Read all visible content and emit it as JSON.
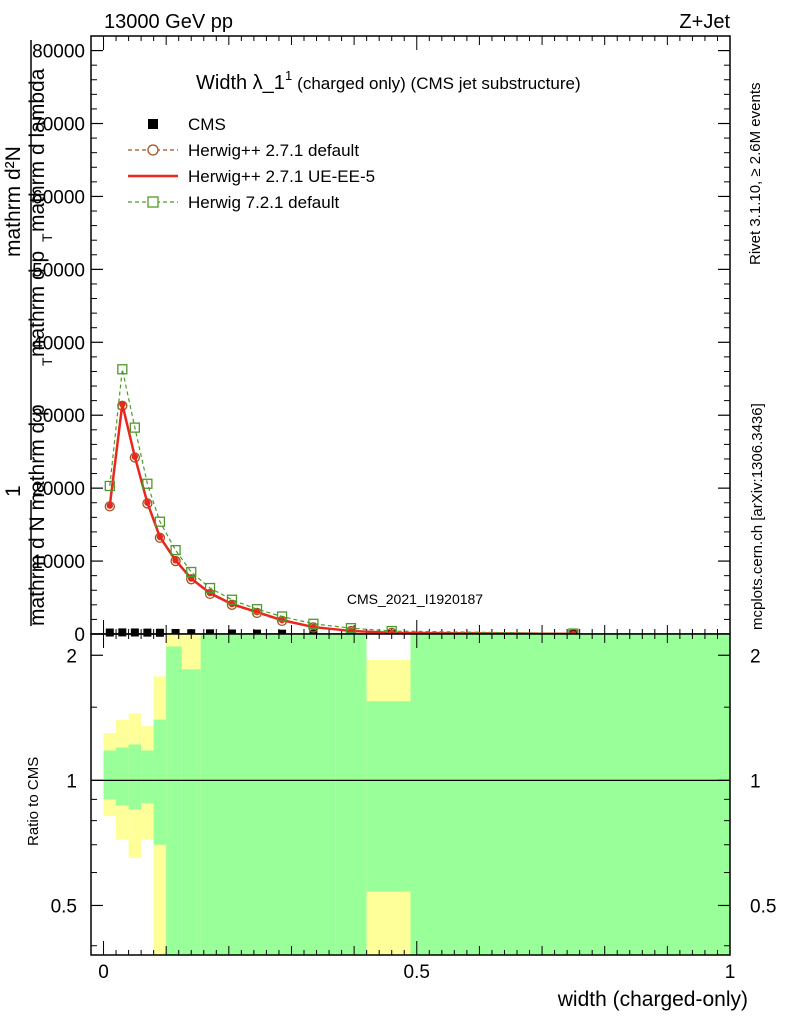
{
  "header": {
    "left": "13000 GeV pp",
    "right": "Z+Jet"
  },
  "side_labels": {
    "rivet": "Rivet 3.1.10, ≥ 2.6M events",
    "mcplots": "mcplots.cern.ch [arXiv:1306.3436]"
  },
  "watermark": "CMS_2021_I1920187",
  "chart_data": [
    {
      "type": "line",
      "title_main": "Width λ_1",
      "title_sup": "1",
      "title_sub": "(charged only) (CMS jet substructure)",
      "ylabel_lines": [
        "1",
        "mathrm d N mathrm d p",
        "mathrm d N",
        "mathrm d p",
        "mathrm d lambda"
      ],
      "ylabel_display": [
        "1",
        "mathrm d N mathrm d p",
        "mathrm d²N",
        "mathrm d p",
        "mathrm d lambda"
      ],
      "ylabel_T": "T",
      "ylim": [
        0,
        82000
      ],
      "yticks": [
        0,
        10000,
        20000,
        30000,
        40000,
        50000,
        60000,
        70000,
        80000
      ],
      "ytick_labels": [
        "0",
        "10000",
        "20000",
        "30000",
        "40000",
        "50000",
        "60000",
        "70000",
        "80000"
      ],
      "xlim": [
        -0.02,
        1.0
      ],
      "legend_position": "top-left",
      "series": [
        {
          "name": "CMS",
          "color": "#000000",
          "style": "markers",
          "x": [
            0.01,
            0.03,
            0.05,
            0.07,
            0.09,
            0.115,
            0.14,
            0.17,
            0.205,
            0.245,
            0.285,
            0.335,
            0.395,
            0.46,
            0.75
          ],
          "y": [
            200,
            220,
            210,
            190,
            170,
            140,
            110,
            90,
            70,
            50,
            40,
            30,
            20,
            10,
            2
          ]
        },
        {
          "name": "Herwig++ 2.7.1 default",
          "color": "#a0521d",
          "style": "dashed-circle",
          "x": [
            0.01,
            0.03,
            0.05,
            0.07,
            0.09,
            0.115,
            0.14,
            0.17,
            0.205,
            0.245,
            0.285,
            0.335,
            0.395,
            0.46,
            0.75
          ],
          "y": [
            17500,
            31300,
            24200,
            17900,
            13200,
            10000,
            7500,
            5500,
            4000,
            2900,
            1800,
            900,
            400,
            150,
            20
          ]
        },
        {
          "name": "Herwig++ 2.7.1 UE-EE-5",
          "color": "#e8281e",
          "style": "solid",
          "x": [
            0.01,
            0.03,
            0.05,
            0.07,
            0.09,
            0.115,
            0.14,
            0.17,
            0.205,
            0.245,
            0.285,
            0.335,
            0.395,
            0.46,
            0.75
          ],
          "y": [
            17600,
            31500,
            24300,
            18000,
            13300,
            10100,
            7600,
            5600,
            4100,
            3000,
            1900,
            950,
            420,
            160,
            25
          ]
        },
        {
          "name": "Herwig 7.2.1 default",
          "color": "#4d9a2a",
          "style": "dashed-square",
          "x": [
            0.01,
            0.03,
            0.05,
            0.07,
            0.09,
            0.115,
            0.14,
            0.17,
            0.205,
            0.245,
            0.285,
            0.335,
            0.395,
            0.46,
            0.75
          ],
          "y": [
            20300,
            36300,
            28300,
            20600,
            15400,
            11500,
            8500,
            6300,
            4700,
            3400,
            2400,
            1400,
            800,
            400,
            60
          ]
        }
      ]
    },
    {
      "type": "area",
      "ylabel": "Ratio to CMS",
      "xlabel": "width (charged-only)",
      "xlim": [
        -0.02,
        1.0
      ],
      "xticks": [
        0,
        0.5,
        1
      ],
      "xtick_labels": [
        "0",
        "0.5",
        "1"
      ],
      "ylim": [
        0.38,
        2.25
      ],
      "log_y": true,
      "yticks": [
        0.5,
        1,
        2
      ],
      "ytick_labels": [
        "0.5",
        "1",
        "2"
      ],
      "reference_line": 1,
      "bins": [
        {
          "lo": 0.0,
          "hi": 0.02,
          "yellow": [
            0.82,
            1.3
          ],
          "green": [
            0.9,
            1.18
          ]
        },
        {
          "lo": 0.02,
          "hi": 0.04,
          "yellow": [
            0.72,
            1.4
          ],
          "green": [
            0.87,
            1.2
          ]
        },
        {
          "lo": 0.04,
          "hi": 0.06,
          "yellow": [
            0.65,
            1.45
          ],
          "green": [
            0.85,
            1.22
          ]
        },
        {
          "lo": 0.06,
          "hi": 0.08,
          "yellow": [
            0.72,
            1.35
          ],
          "green": [
            0.88,
            1.18
          ]
        },
        {
          "lo": 0.08,
          "hi": 0.1,
          "yellow": [
            0.38,
            1.78
          ],
          "green": [
            0.7,
            1.4
          ]
        },
        {
          "lo": 0.1,
          "hi": 0.125,
          "yellow": [
            0.38,
            2.25
          ],
          "green": [
            0.38,
            2.1
          ]
        },
        {
          "lo": 0.125,
          "hi": 0.155,
          "yellow": [
            0.38,
            2.25
          ],
          "green": [
            0.38,
            1.85
          ]
        },
        {
          "lo": 0.155,
          "hi": 0.32,
          "yellow": [
            0.38,
            2.25
          ],
          "green": [
            0.38,
            2.25
          ]
        },
        {
          "lo": 0.32,
          "hi": 0.37,
          "yellow": [
            0.38,
            2.25
          ],
          "green": [
            0.38,
            2.25
          ],
          "yellow_top": 2.1
        },
        {
          "lo": 0.37,
          "hi": 0.42,
          "yellow": [
            0.38,
            2.25
          ],
          "green": [
            0.38,
            2.25
          ]
        },
        {
          "lo": 0.42,
          "hi": 0.49,
          "yellow": [
            0.38,
            1.95
          ],
          "green": [
            0.54,
            1.55
          ]
        },
        {
          "lo": 0.49,
          "hi": 1.0,
          "yellow": [
            0.38,
            2.25
          ],
          "green": [
            0.38,
            2.25
          ]
        }
      ]
    }
  ],
  "colors": {
    "band_green": "#99ff99",
    "band_yellow": "#ffff99"
  }
}
